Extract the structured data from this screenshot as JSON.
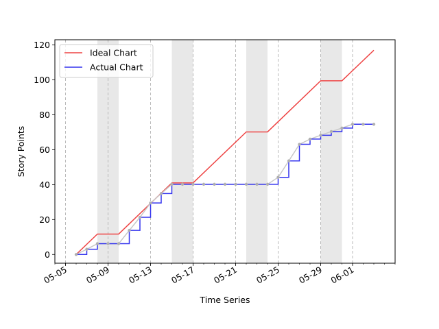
{
  "chart_data": {
    "type": "line",
    "title": "",
    "xlabel": "Time Series",
    "ylabel": "Story Points",
    "x_tick_labels": [
      "05-05",
      "05-09",
      "05-13",
      "05-17",
      "05-21",
      "05-25",
      "05-29",
      "06-01"
    ],
    "x_tick_dates": [
      "2024-05-05",
      "2024-05-09",
      "2024-05-13",
      "2024-05-17",
      "2024-05-21",
      "2024-05-25",
      "2024-05-29",
      "2024-06-01"
    ],
    "y_ticks": [
      0,
      20,
      40,
      60,
      80,
      100,
      120
    ],
    "xlim": [
      "2024-05-04",
      "2024-06-05"
    ],
    "ylim": [
      -5,
      123
    ],
    "grid": "vertical dashed at day ticks",
    "legend_position": "top-left",
    "weekend_spans": [
      [
        "2024-05-08",
        "2024-05-10"
      ],
      [
        "2024-05-15",
        "2024-05-17"
      ],
      [
        "2024-05-22",
        "2024-05-24"
      ],
      [
        "2024-05-29",
        "2024-05-31"
      ]
    ],
    "series": [
      {
        "name": "Ideal Chart",
        "color": "#ee4444",
        "style": "line",
        "x": [
          "2024-05-06",
          "2024-05-08",
          "2024-05-10",
          "2024-05-15",
          "2024-05-17",
          "2024-05-22",
          "2024-05-24",
          "2024-05-29",
          "2024-05-31",
          "2024-06-03"
        ],
        "y": [
          0,
          11.7,
          11.7,
          41,
          41,
          70.2,
          70.2,
          99.5,
          99.5,
          117
        ]
      },
      {
        "name": "Actual Chart",
        "color": "#3333ee",
        "style": "step",
        "x": [
          "2024-05-06",
          "2024-05-07",
          "2024-05-08",
          "2024-05-09",
          "2024-05-10",
          "2024-05-11",
          "2024-05-12",
          "2024-05-13",
          "2024-05-14",
          "2024-05-15",
          "2024-05-16",
          "2024-05-17",
          "2024-05-18",
          "2024-05-19",
          "2024-05-20",
          "2024-05-21",
          "2024-05-22",
          "2024-05-23",
          "2024-05-24",
          "2024-05-25",
          "2024-05-26",
          "2024-05-27",
          "2024-05-28",
          "2024-05-29",
          "2024-05-30",
          "2024-05-31",
          "2024-06-01",
          "2024-06-02",
          "2024-06-03"
        ],
        "y": [
          0,
          3,
          6.2,
          6.2,
          6.2,
          13.8,
          21.3,
          29.5,
          34.9,
          40.2,
          40.2,
          40.2,
          40.2,
          40.2,
          40.2,
          40.2,
          40.2,
          40.2,
          40.2,
          44.2,
          53.6,
          63.1,
          66.1,
          68.3,
          70.4,
          72.4,
          74.6,
          74.6,
          74.6
        ]
      }
    ],
    "colors": {
      "ideal": "#ee4444",
      "actual": "#3333ee",
      "actual_markers": "#b0b0b0",
      "weekend_band": "#e8e8e8",
      "grid": "#aaaaaa"
    }
  }
}
